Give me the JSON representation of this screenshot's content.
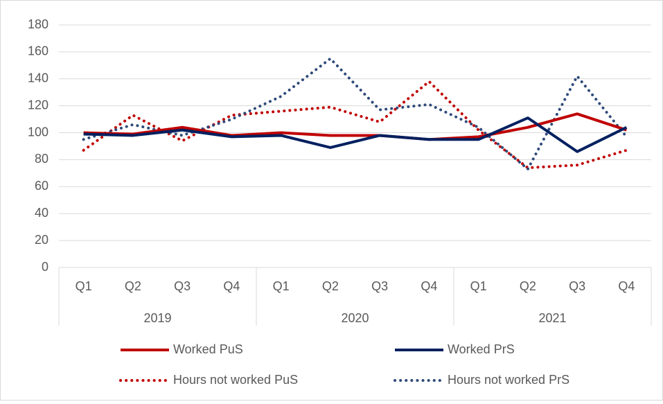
{
  "chart_data": {
    "type": "line",
    "category_groups": [
      {
        "name": "2019",
        "categories": [
          "Q1",
          "Q2",
          "Q3",
          "Q4"
        ]
      },
      {
        "name": "2020",
        "categories": [
          "Q1",
          "Q2",
          "Q3",
          "Q4"
        ]
      },
      {
        "name": "2021",
        "categories": [
          "Q1",
          "Q2",
          "Q3",
          "Q4"
        ]
      }
    ],
    "ylim": [
      0,
      180
    ],
    "yticks": [
      0,
      20,
      40,
      60,
      80,
      100,
      120,
      140,
      160,
      180
    ],
    "grid": true,
    "legend": "bottom",
    "series": [
      {
        "name": "Worked PuS",
        "color": "#c00000",
        "style": "solid",
        "values": [
          100,
          99,
          104,
          98,
          100,
          98,
          98,
          95,
          97,
          104,
          114,
          102
        ]
      },
      {
        "name": "Worked PrS",
        "color": "#002060",
        "style": "solid",
        "values": [
          99,
          98,
          102,
          97,
          98,
          89,
          98,
          95,
          95,
          111,
          86,
          104
        ]
      },
      {
        "name": "Hours not worked PuS",
        "color": "#c00000",
        "style": "dotted",
        "values": [
          87,
          113,
          94,
          113,
          116,
          119,
          108,
          138,
          102,
          74,
          76,
          87
        ]
      },
      {
        "name": "Hours not worked PrS",
        "color": "#2f4a7a",
        "style": "dotted",
        "values": [
          95,
          106,
          98,
          110,
          127,
          155,
          117,
          121,
          104,
          73,
          142,
          97
        ]
      }
    ]
  }
}
